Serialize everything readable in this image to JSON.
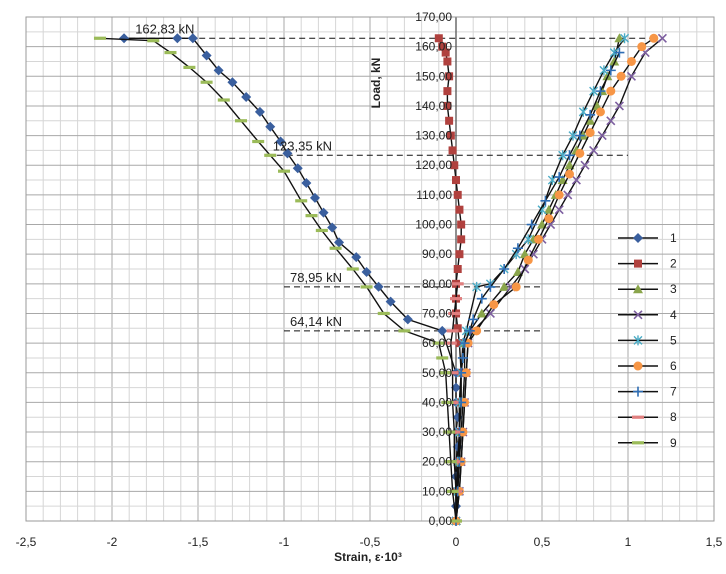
{
  "chart_data": {
    "type": "line",
    "xlabel": "Strain,  ε·10³",
    "ylabel": "Load, kN",
    "xlim": [
      -2.5,
      1.5
    ],
    "ylim": [
      0,
      170
    ],
    "xticks": [
      -2.5,
      -2,
      -1.5,
      -1,
      -0.5,
      0,
      0.5,
      1,
      1.5
    ],
    "xtick_labels": [
      "-2,5",
      "-2",
      "-1,5",
      "-1",
      "-0,5",
      "0",
      "0,5",
      "1",
      "1,5"
    ],
    "yticks": [
      0,
      10,
      20,
      30,
      40,
      50,
      60,
      70,
      80,
      90,
      100,
      110,
      120,
      130,
      140,
      150,
      160,
      170
    ],
    "ytick_labels": [
      "0,00",
      "10,00",
      "20,00",
      "30,00",
      "40,00",
      "50,00",
      "60,00",
      "70,00",
      "80,00",
      "90,00",
      "100,00",
      "110,00",
      "120,00",
      "130,00",
      "140,00",
      "150,00",
      "160,00",
      "170,00"
    ],
    "grid": true,
    "legend_position": "right",
    "annotations": [
      {
        "label": "162,83 kN",
        "y": 162.83,
        "x_from": -1.9,
        "x_to": 1.15
      },
      {
        "label": "123,35 kN",
        "y": 123.35,
        "x_from": -1.1,
        "x_to": 1.0
      },
      {
        "label": "78,95 kN",
        "y": 78.95,
        "x_from": -1.0,
        "x_to": 0.5
      },
      {
        "label": "64,14 kN",
        "y": 64.14,
        "x_from": -1.0,
        "x_to": 0.5
      }
    ],
    "series": [
      {
        "name": "1",
        "color": "#3A5F9E",
        "marker": "diamond",
        "x": [
          0,
          0,
          0,
          0,
          0,
          0.01,
          0,
          0.01,
          0,
          0,
          0,
          -0.08,
          -0.28,
          -0.38,
          -0.45,
          -0.52,
          -0.58,
          -0.68,
          -0.72,
          -0.77,
          -0.82,
          -0.87,
          -0.92,
          -0.98,
          -1.02,
          -1.08,
          -1.14,
          -1.22,
          -1.3,
          -1.38,
          -1.45,
          -1.53,
          -1.62,
          -1.93
        ],
        "y": [
          0,
          5,
          10,
          15,
          20,
          25,
          30,
          35,
          40,
          45,
          50,
          64.14,
          68,
          74,
          79,
          84,
          89,
          94,
          99,
          104,
          109,
          114,
          119,
          124,
          128,
          133,
          138,
          143,
          148,
          152,
          157,
          162.83,
          162.83,
          162.83
        ]
      },
      {
        "name": "2",
        "color": "#B0413E",
        "marker": "square",
        "x": [
          0,
          0,
          0.01,
          0.02,
          0.02,
          0.03,
          0.02,
          0.01,
          0,
          0,
          0,
          0.01,
          0.02,
          0.03,
          0.03,
          0.02,
          0.01,
          0,
          -0.01,
          -0.02,
          -0.03,
          -0.04,
          -0.05,
          -0.05,
          -0.04,
          -0.05,
          -0.06,
          -0.08,
          -0.1
        ],
        "y": [
          0,
          10,
          20,
          30,
          40,
          50,
          60,
          65,
          70,
          75,
          80,
          85,
          90,
          95,
          100,
          105,
          110,
          115,
          120,
          125,
          130,
          135,
          140,
          145,
          150,
          155,
          158,
          160,
          162.83
        ]
      },
      {
        "name": "3",
        "color": "#8AA54B",
        "marker": "triangle",
        "x": [
          0,
          0.01,
          0.02,
          0.03,
          0.04,
          0.05,
          0.05,
          0.08,
          0.15,
          0.28,
          0.36,
          0.4,
          0.45,
          0.5,
          0.54,
          0.58,
          0.62,
          0.66,
          0.7,
          0.74,
          0.78,
          0.82,
          0.85,
          0.88,
          0.92,
          0.95
        ],
        "y": [
          0,
          10,
          20,
          30,
          40,
          50,
          60,
          64.14,
          70,
          78.95,
          84,
          90,
          95,
          100,
          105,
          110,
          115,
          120,
          125,
          130,
          135,
          140,
          145,
          150,
          155,
          162.83
        ]
      },
      {
        "name": "4",
        "color": "#7D5FA0",
        "marker": "x",
        "x": [
          0,
          0.02,
          0.03,
          0.04,
          0.05,
          0.06,
          0.07,
          0.1,
          0.2,
          0.32,
          0.4,
          0.45,
          0.5,
          0.55,
          0.6,
          0.65,
          0.7,
          0.75,
          0.8,
          0.85,
          0.9,
          0.95,
          1.02,
          1.1,
          1.2
        ],
        "y": [
          0,
          10,
          20,
          30,
          40,
          50,
          60,
          64.14,
          70,
          78.95,
          85,
          90,
          95,
          100,
          105,
          110,
          115,
          120,
          125,
          130,
          135,
          140,
          150,
          158,
          162.83
        ]
      },
      {
        "name": "5",
        "color": "#4BACC6",
        "marker": "asterisk",
        "x": [
          0,
          0.01,
          0.01,
          0.02,
          0.02,
          0.03,
          0.04,
          0.06,
          0.12,
          0.2,
          0.28,
          0.35,
          0.42,
          0.5,
          0.56,
          0.62,
          0.68,
          0.74,
          0.8,
          0.86,
          0.92,
          0.98
        ],
        "y": [
          0,
          10,
          20,
          30,
          40,
          50,
          60,
          64.14,
          78.95,
          80,
          85,
          90,
          95,
          105,
          115,
          123.35,
          130,
          138,
          145,
          152,
          158,
          162.83
        ]
      },
      {
        "name": "6",
        "color": "#F79646",
        "marker": "circle",
        "x": [
          0,
          0.02,
          0.03,
          0.04,
          0.05,
          0.06,
          0.07,
          0.12,
          0.22,
          0.35,
          0.42,
          0.48,
          0.54,
          0.6,
          0.66,
          0.72,
          0.78,
          0.84,
          0.9,
          0.96,
          1.02,
          1.08,
          1.15
        ],
        "y": [
          0,
          10,
          20,
          30,
          40,
          50,
          60,
          64.14,
          73,
          78.95,
          88,
          95,
          102,
          110,
          117,
          124,
          131,
          138,
          145,
          150,
          155,
          160,
          162.83
        ]
      },
      {
        "name": "7",
        "color": "#2E6DB4",
        "marker": "plus",
        "x": [
          0,
          0.01,
          0.02,
          0.02,
          0.03,
          0.03,
          0.04,
          0.05,
          0.08,
          0.1,
          0.15,
          0.2,
          0.28,
          0.36,
          0.44,
          0.52,
          0.6,
          0.66,
          0.72,
          0.78,
          0.84,
          0.9,
          0.95
        ],
        "y": [
          0,
          10,
          20,
          30,
          40,
          50,
          55,
          60,
          64.14,
          68,
          75,
          78.95,
          85,
          92,
          100,
          108,
          116,
          123.35,
          130,
          137,
          145,
          152,
          158
        ]
      },
      {
        "name": "8",
        "color": "#E07F7F",
        "marker": "dash",
        "x": [
          0,
          0,
          -0.01,
          -0.01,
          -0.02,
          -0.02,
          -0.03,
          -0.02,
          -0.01,
          0,
          0.01
        ],
        "y": [
          0,
          10,
          20,
          30,
          40,
          50,
          60,
          64.14,
          70,
          75,
          80
        ]
      },
      {
        "name": "9",
        "color": "#9BBB59",
        "marker": "dash",
        "x": [
          0,
          -0.02,
          -0.03,
          -0.04,
          -0.05,
          -0.06,
          -0.08,
          -0.1,
          -0.3,
          -0.42,
          -0.52,
          -0.6,
          -0.7,
          -0.78,
          -0.84,
          -0.9,
          -1.0,
          -1.08,
          -1.15,
          -1.25,
          -1.35,
          -1.45,
          -1.55,
          -1.66,
          -1.76,
          -2.07
        ],
        "y": [
          0,
          10,
          20,
          30,
          40,
          50,
          55,
          60,
          64.14,
          70,
          78.95,
          85,
          92,
          98,
          103,
          108,
          118,
          123.35,
          128,
          135,
          142,
          148,
          153,
          158,
          162,
          162.83
        ]
      }
    ]
  }
}
